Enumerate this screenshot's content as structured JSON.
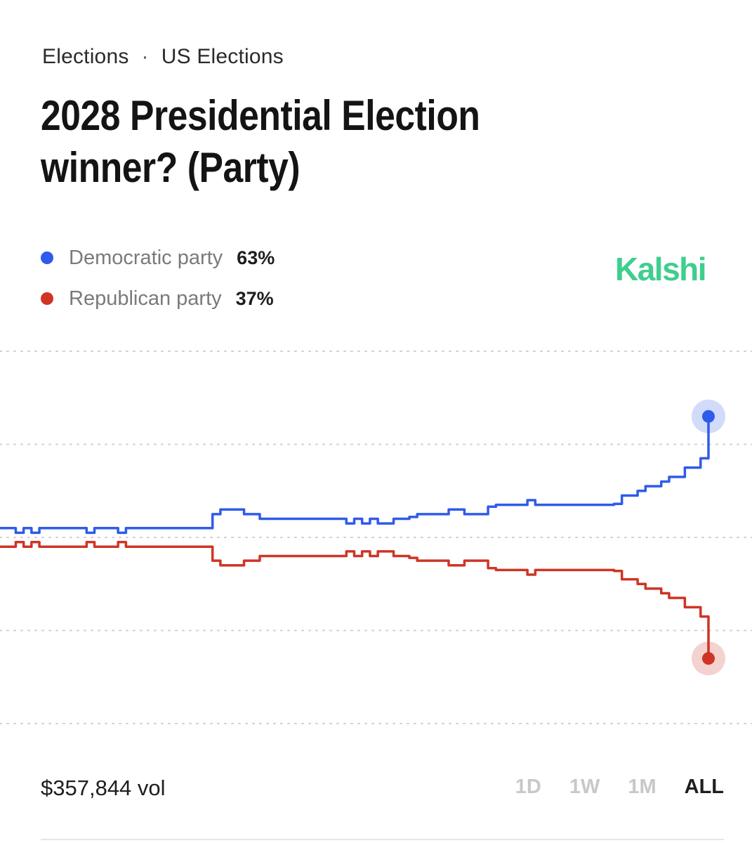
{
  "breadcrumb": {
    "category": "Elections",
    "separator": "·",
    "subcategory": "US Elections"
  },
  "market": {
    "title": "2028 Presidential Election winner? (Party)"
  },
  "brand": {
    "name": "Kalshi",
    "color": "#3fce8e"
  },
  "footer": {
    "volume": "$357,844 vol",
    "ranges": [
      "1D",
      "1W",
      "1M",
      "ALL"
    ],
    "active_range": "ALL"
  },
  "chart_data": {
    "type": "line",
    "title": "2028 Presidential Election winner? (Party)",
    "xlabel": "",
    "ylabel": "",
    "ylim": [
      30,
      70
    ],
    "grid": true,
    "gridlines": [
      30,
      40,
      50,
      60,
      70
    ],
    "axis_labels_visible": false,
    "legend_position": "top-left",
    "x_points": 91,
    "series": [
      {
        "name": "Democratic party",
        "label": "63%",
        "color": "#2f5bea",
        "values": [
          51,
          51,
          50.5,
          51,
          50.5,
          51,
          51,
          51,
          51,
          51,
          51,
          50.5,
          51,
          51,
          51,
          50.5,
          51,
          51,
          51,
          51,
          51,
          51,
          51,
          51,
          51,
          51,
          51,
          52.5,
          53,
          53,
          53,
          52.5,
          52.5,
          52,
          52,
          52,
          52,
          52,
          52,
          52,
          52,
          52,
          52,
          52,
          51.5,
          52,
          51.5,
          52,
          51.5,
          51.5,
          52,
          52,
          52.2,
          52.5,
          52.5,
          52.5,
          52.5,
          53,
          53,
          52.5,
          52.5,
          52.5,
          53.3,
          53.5,
          53.5,
          53.5,
          53.5,
          54,
          53.5,
          53.5,
          53.5,
          53.5,
          53.5,
          53.5,
          53.5,
          53.5,
          53.5,
          53.5,
          53.6,
          54.5,
          54.5,
          55,
          55.5,
          55.5,
          56,
          56.5,
          56.5,
          57.5,
          57.5,
          58.5,
          63
        ]
      },
      {
        "name": "Republican party",
        "label": "37%",
        "color": "#cf3425",
        "values": [
          49,
          49,
          49.5,
          49,
          49.5,
          49,
          49,
          49,
          49,
          49,
          49,
          49.5,
          49,
          49,
          49,
          49.5,
          49,
          49,
          49,
          49,
          49,
          49,
          49,
          49,
          49,
          49,
          49,
          47.5,
          47,
          47,
          47,
          47.5,
          47.5,
          48,
          48,
          48,
          48,
          48,
          48,
          48,
          48,
          48,
          48,
          48,
          48.5,
          48,
          48.5,
          48,
          48.5,
          48.5,
          48,
          48,
          47.8,
          47.5,
          47.5,
          47.5,
          47.5,
          47,
          47,
          47.5,
          47.5,
          47.5,
          46.7,
          46.5,
          46.5,
          46.5,
          46.5,
          46,
          46.5,
          46.5,
          46.5,
          46.5,
          46.5,
          46.5,
          46.5,
          46.5,
          46.5,
          46.5,
          46.4,
          45.5,
          45.5,
          45,
          44.5,
          44.5,
          44,
          43.5,
          43.5,
          42.5,
          42.5,
          41.5,
          37
        ]
      }
    ]
  }
}
